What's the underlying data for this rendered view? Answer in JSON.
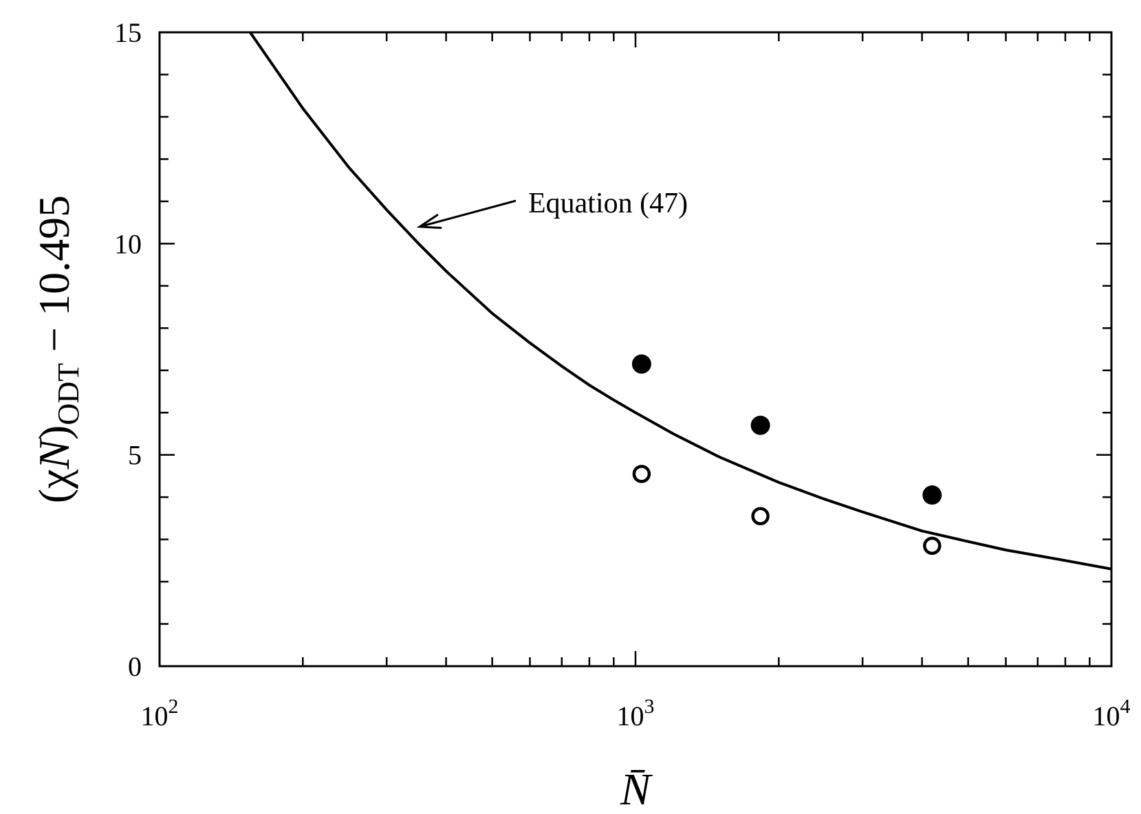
{
  "chart_data": {
    "type": "scatter",
    "title": "",
    "xlabel": "N̄",
    "ylabel": {
      "prefix": "(χ",
      "italic": "N",
      "close": ")",
      "subscript": "ODT",
      "suffix": " − 10.495"
    },
    "x_scale": "log",
    "xlim": [
      100,
      10000
    ],
    "ylim": [
      0,
      15
    ],
    "x_ticks": [
      {
        "value": 100,
        "base": "10",
        "exp": "2"
      },
      {
        "value": 1000,
        "base": "10",
        "exp": "3"
      },
      {
        "value": 10000,
        "base": "10",
        "exp": "4"
      }
    ],
    "y_ticks": [
      {
        "value": 0,
        "label": "0"
      },
      {
        "value": 5,
        "label": "5"
      },
      {
        "value": 10,
        "label": "10"
      },
      {
        "value": 15,
        "label": "15"
      }
    ],
    "y_minor_step": 1,
    "grid": false,
    "series": [
      {
        "kind": "curve",
        "color": "#000000",
        "x": [
          155,
          200,
          250,
          300,
          350,
          400,
          500,
          600,
          700,
          800,
          900,
          1000,
          1200,
          1500,
          2000,
          2500,
          3000,
          4000,
          5000,
          6000,
          8000,
          10000
        ],
        "y": [
          15.0,
          13.2,
          11.8,
          10.8,
          10.0,
          9.35,
          8.35,
          7.65,
          7.1,
          6.65,
          6.3,
          6.0,
          5.5,
          4.95,
          4.35,
          3.95,
          3.65,
          3.2,
          2.95,
          2.75,
          2.5,
          2.3
        ]
      },
      {
        "kind": "points",
        "marker": "filled-circle",
        "color": "#000000",
        "x": [
          1030,
          1830,
          4200
        ],
        "y": [
          7.15,
          5.7,
          4.05
        ]
      },
      {
        "kind": "points",
        "marker": "open-circle",
        "color": "#000000",
        "x": [
          1030,
          1830,
          4200
        ],
        "y": [
          4.55,
          3.55,
          2.85
        ]
      }
    ],
    "annotations": [
      {
        "text": "Equation (47)",
        "arrow_to": {
          "x": 352,
          "y": 10.4
        }
      }
    ]
  }
}
